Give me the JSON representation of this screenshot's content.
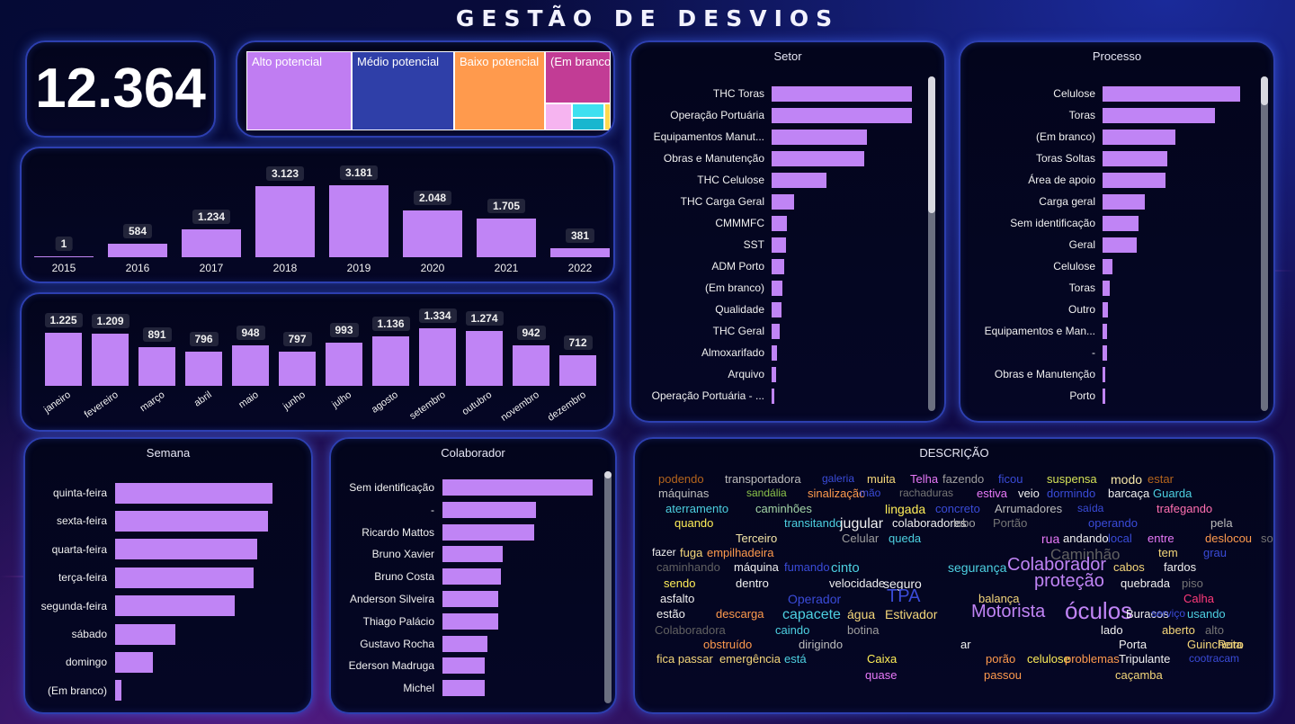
{
  "header": {
    "title": "GESTÃO DE DESVIOS"
  },
  "kpi": {
    "total": "12.364"
  },
  "treemap": {
    "items": [
      {
        "label": "Alto potencial",
        "color": "#c07df2"
      },
      {
        "label": "Médio potencial",
        "color": "#2f3fa8"
      },
      {
        "label": "Baixo potencial",
        "color": "#ff9a4d"
      },
      {
        "label": "(Em branco)",
        "color": "#c23c95"
      }
    ],
    "small_colors": [
      "#f6b4f0",
      "#3fe0f0",
      "#19b6cf",
      "#ffd84d"
    ]
  },
  "years": {
    "categories": [
      "2015",
      "2016",
      "2017",
      "2018",
      "2019",
      "2020",
      "2021",
      "2022"
    ],
    "values": [
      1,
      584,
      1234,
      3123,
      3181,
      2048,
      1705,
      381
    ],
    "labels": [
      "1",
      "584",
      "1.234",
      "3.123",
      "3.181",
      "2.048",
      "1.705",
      "381"
    ]
  },
  "months": {
    "categories": [
      "janeiro",
      "fevereiro",
      "março",
      "abril",
      "maio",
      "junho",
      "julho",
      "agosto",
      "setembro",
      "outubro",
      "novembro",
      "dezembro"
    ],
    "values": [
      1225,
      1209,
      891,
      796,
      948,
      797,
      993,
      1136,
      1334,
      1274,
      942,
      712
    ],
    "labels": [
      "1.225",
      "1.209",
      "891",
      "796",
      "948",
      "797",
      "993",
      "1.136",
      "1.334",
      "1.274",
      "942",
      "712"
    ]
  },
  "setor": {
    "title": "Setor",
    "categories": [
      "THC Toras",
      "Operação Portuária",
      "Equipamentos Manut...",
      "Obras e Manutenção",
      "THC Celulose",
      "THC Carga Geral",
      "CMMMFC",
      "SST",
      "ADM Porto",
      "(Em branco)",
      "Qualidade",
      "THC Geral",
      "Almoxarifado",
      "Arquivo",
      "Operação Portuária - ..."
    ],
    "values": [
      100,
      100,
      68,
      66,
      39,
      16,
      11,
      10,
      9,
      8,
      7,
      6,
      4,
      3,
      2
    ]
  },
  "processo": {
    "title": "Processo",
    "categories": [
      "Celulose",
      "Toras",
      "(Em branco)",
      "Toras Soltas",
      "Área de apoio",
      "Carga geral",
      "Sem identificação",
      "Geral",
      "Celulose",
      "Toras",
      "Outro",
      "Equipamentos e Man...",
      "-",
      "Obras e Manutenção",
      "Porto"
    ],
    "values": [
      100,
      82,
      53,
      47,
      46,
      31,
      26,
      25,
      7,
      5,
      4,
      3,
      3,
      2,
      2
    ]
  },
  "semana": {
    "title": "Semana",
    "categories": [
      "quinta-feira",
      "sexta-feira",
      "quarta-feira",
      "terça-feira",
      "segunda-feira",
      "sábado",
      "domingo",
      "(Em branco)"
    ],
    "values": [
      100,
      97,
      90,
      88,
      76,
      38,
      24,
      4
    ]
  },
  "colaborador": {
    "title": "Colaborador",
    "categories": [
      "Sem identificação",
      "-",
      "Ricardo Mattos",
      "Bruno Xavier",
      "Bruno Costa",
      "Anderson Silveira",
      "Thiago Palácio",
      "Gustavo Rocha",
      "Ederson Madruga",
      "Michel"
    ],
    "values": [
      100,
      62,
      61,
      40,
      39,
      37,
      37,
      30,
      28,
      28
    ]
  },
  "descricao": {
    "title": "DESCRIÇÃO",
    "words": [
      {
        "t": "podendo",
        "c": "#b5651d",
        "s": 13
      },
      {
        "t": "transportadora",
        "c": "#bdbdbd",
        "s": 13
      },
      {
        "t": "galeria",
        "c": "#3a4bd8",
        "s": 12
      },
      {
        "t": "muita",
        "c": "#f5d77a",
        "s": 13
      },
      {
        "t": "Telha",
        "c": "#e879f9",
        "s": 13
      },
      {
        "t": "fazendo",
        "c": "#9e9e9e",
        "s": 13
      },
      {
        "t": "ficou",
        "c": "#3a4bd8",
        "s": 13
      },
      {
        "t": "suspensa",
        "c": "#d4e157",
        "s": 13
      },
      {
        "t": "modo",
        "c": "#f5e6a8",
        "s": 14
      },
      {
        "t": "estar",
        "c": "#b5651d",
        "s": 13
      },
      {
        "t": "máquinas",
        "c": "#bdbdbd",
        "s": 13
      },
      {
        "t": "sandália",
        "c": "#8bc34a",
        "s": 12
      },
      {
        "t": "sinalização",
        "c": "#ff9a4d",
        "s": 13
      },
      {
        "t": "mão",
        "c": "#3a4bd8",
        "s": 12
      },
      {
        "t": "rachaduras",
        "c": "#757575",
        "s": 12
      },
      {
        "t": "estiva",
        "c": "#e879f9",
        "s": 13
      },
      {
        "t": "veio",
        "c": "#f0f0f0",
        "s": 13
      },
      {
        "t": "dormindo",
        "c": "#3a4bd8",
        "s": 13
      },
      {
        "t": "barcaça",
        "c": "#f0f0f0",
        "s": 13
      },
      {
        "t": "Guarda",
        "c": "#4dd0e1",
        "s": 13
      },
      {
        "t": "aterramento",
        "c": "#4dd0e1",
        "s": 13
      },
      {
        "t": "caminhões",
        "c": "#a5d6a7",
        "s": 13
      },
      {
        "t": "lingada",
        "c": "#ffee58",
        "s": 14
      },
      {
        "t": "concreto",
        "c": "#3a4bd8",
        "s": 13
      },
      {
        "t": "Arrumadores",
        "c": "#bdbdbd",
        "s": 13
      },
      {
        "t": "saída",
        "c": "#3a4bd8",
        "s": 12
      },
      {
        "t": "trafegando",
        "c": "#ff6fb0",
        "s": 13
      },
      {
        "t": "quando",
        "c": "#ffee58",
        "s": 13
      },
      {
        "t": "transitando",
        "c": "#4dd0e1",
        "s": 13
      },
      {
        "t": "jugular",
        "c": "#f0f0f0",
        "s": 16
      },
      {
        "t": "colaboradores",
        "c": "#f0f0f0",
        "s": 13
      },
      {
        "t": "lobo",
        "c": "#9e9e9e",
        "s": 13
      },
      {
        "t": "Portão",
        "c": "#757575",
        "s": 13
      },
      {
        "t": "operando",
        "c": "#3a4bd8",
        "s": 13
      },
      {
        "t": "pela",
        "c": "#bdbdbd",
        "s": 13
      },
      {
        "t": "Terceiro",
        "c": "#f5e6a8",
        "s": 13
      },
      {
        "t": "Celular",
        "c": "#9e9e9e",
        "s": 13
      },
      {
        "t": "queda",
        "c": "#4dd0e1",
        "s": 13
      },
      {
        "t": "rua",
        "c": "#e879f9",
        "s": 14
      },
      {
        "t": "andando",
        "c": "#f0f0f0",
        "s": 13
      },
      {
        "t": "local",
        "c": "#3a4bd8",
        "s": 13
      },
      {
        "t": "entre",
        "c": "#e879f9",
        "s": 13
      },
      {
        "t": "deslocou",
        "c": "#ff9a4d",
        "s": 13
      },
      {
        "t": "sobre",
        "c": "#757575",
        "s": 13
      },
      {
        "t": "fazer",
        "c": "#f0f0f0",
        "s": 12
      },
      {
        "t": "fuga",
        "c": "#f5d77a",
        "s": 13
      },
      {
        "t": "empilhadeira",
        "c": "#ff9a4d",
        "s": 13
      },
      {
        "t": "Caminhão",
        "c": "#616161",
        "s": 17
      },
      {
        "t": "tem",
        "c": "#f5d77a",
        "s": 13
      },
      {
        "t": "grau",
        "c": "#3a4bd8",
        "s": 13
      },
      {
        "t": "caminhando",
        "c": "#616161",
        "s": 13
      },
      {
        "t": "máquina",
        "c": "#f0f0f0",
        "s": 13
      },
      {
        "t": "fumando",
        "c": "#3a4bd8",
        "s": 13
      },
      {
        "t": "cinto",
        "c": "#4dd0e1",
        "s": 15
      },
      {
        "t": "segurança",
        "c": "#4dd0e1",
        "s": 14
      },
      {
        "t": "Colaborador",
        "c": "#c084f5",
        "s": 20
      },
      {
        "t": "cabos",
        "c": "#f5d77a",
        "s": 13
      },
      {
        "t": "fardos",
        "c": "#f0f0f0",
        "s": 13
      },
      {
        "t": "sendo",
        "c": "#ffee58",
        "s": 13
      },
      {
        "t": "dentro",
        "c": "#f0f0f0",
        "s": 13
      },
      {
        "t": "velocidade",
        "c": "#f0f0f0",
        "s": 13
      },
      {
        "t": "seguro",
        "c": "#f0f0f0",
        "s": 14
      },
      {
        "t": "proteção",
        "c": "#c084f5",
        "s": 20
      },
      {
        "t": "quebrada",
        "c": "#f0f0f0",
        "s": 13
      },
      {
        "t": "piso",
        "c": "#757575",
        "s": 13
      },
      {
        "t": "asfalto",
        "c": "#f0f0f0",
        "s": 13
      },
      {
        "t": "Operador",
        "c": "#3a4bd8",
        "s": 14
      },
      {
        "t": "TPA",
        "c": "#3a4bd8",
        "s": 20
      },
      {
        "t": "balança",
        "c": "#f5d77a",
        "s": 13
      },
      {
        "t": "Calha",
        "c": "#ff3b7a",
        "s": 13
      },
      {
        "t": "estão",
        "c": "#f0f0f0",
        "s": 13
      },
      {
        "t": "descarga",
        "c": "#ff9a4d",
        "s": 13
      },
      {
        "t": "capacete",
        "c": "#4dd0e1",
        "s": 16
      },
      {
        "t": "água",
        "c": "#f5d77a",
        "s": 14
      },
      {
        "t": "Estivador",
        "c": "#f5d77a",
        "s": 14
      },
      {
        "t": "Motorista",
        "c": "#c084f5",
        "s": 20
      },
      {
        "t": "óculos",
        "c": "#c084f5",
        "s": 26
      },
      {
        "t": "Buracos",
        "c": "#f0f0f0",
        "s": 13
      },
      {
        "t": "usando",
        "c": "#4dd0e1",
        "s": 13
      },
      {
        "t": "serviço",
        "c": "#3a4bd8",
        "s": 12
      },
      {
        "t": "Colaboradora",
        "c": "#616161",
        "s": 13
      },
      {
        "t": "caindo",
        "c": "#4dd0e1",
        "s": 13
      },
      {
        "t": "botina",
        "c": "#9e9e9e",
        "s": 13
      },
      {
        "t": "lado",
        "c": "#f0f0f0",
        "s": 13
      },
      {
        "t": "aberto",
        "c": "#f5d77a",
        "s": 13
      },
      {
        "t": "alto",
        "c": "#757575",
        "s": 13
      },
      {
        "t": "obstruído",
        "c": "#ff9a4d",
        "s": 13
      },
      {
        "t": "dirigindo",
        "c": "#bdbdbd",
        "s": 13
      },
      {
        "t": "ar",
        "c": "#f0f0f0",
        "s": 13
      },
      {
        "t": "Porta",
        "c": "#f0f0f0",
        "s": 13
      },
      {
        "t": "Rota",
        "c": "#f5d77a",
        "s": 13
      },
      {
        "t": "Guincheiro",
        "c": "#f5d77a",
        "s": 13
      },
      {
        "t": "fica passar",
        "c": "#f5d77a",
        "s": 13
      },
      {
        "t": "emergência",
        "c": "#f5d77a",
        "s": 13
      },
      {
        "t": "está",
        "c": "#4dd0e1",
        "s": 13
      },
      {
        "t": "Caixa",
        "c": "#ffee58",
        "s": 13
      },
      {
        "t": "porão",
        "c": "#ff9a4d",
        "s": 13
      },
      {
        "t": "celulose",
        "c": "#ffee58",
        "s": 13
      },
      {
        "t": "problemas",
        "c": "#ff9a4d",
        "s": 13
      },
      {
        "t": "Tripulante",
        "c": "#f0f0f0",
        "s": 13
      },
      {
        "t": "cootracam",
        "c": "#3a4bd8",
        "s": 12
      },
      {
        "t": "quase",
        "c": "#e879f9",
        "s": 13
      },
      {
        "t": "passou",
        "c": "#ff9a4d",
        "s": 13
      },
      {
        "t": "caçamba",
        "c": "#f5d77a",
        "s": 13
      }
    ]
  }
}
